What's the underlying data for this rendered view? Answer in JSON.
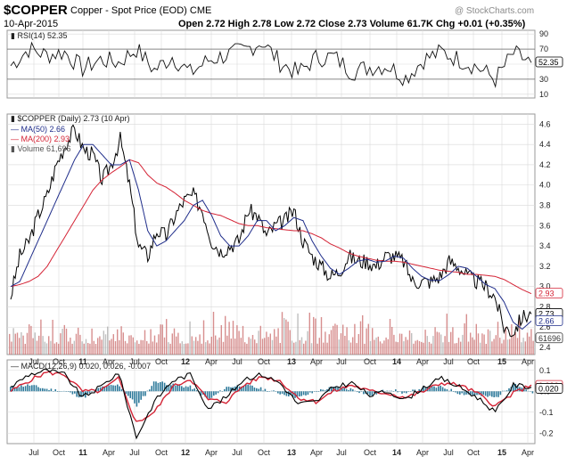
{
  "header": {
    "symbol": "$COPPER",
    "description": "Copper - Spot Price (EOD) CME",
    "date": "10-Apr-2015",
    "quote": "Open 2.72  High 2.78  Low 2.72  Close 2.73  Volume 61.7K  Chg +0.01 (+0.35%)",
    "watermark": "@ StockCharts.com"
  },
  "colors": {
    "price": "#000000",
    "ma50": "#1f2d8a",
    "ma200": "#d42335",
    "volume": "#c96a6a",
    "volume_alt": "#a9a9a9",
    "macd_line": "#000000",
    "macd_signal": "#d42335",
    "macd_hist": "#2e7a9b",
    "grid": "#d9d9d9"
  },
  "chart_data": [
    {
      "type": "line",
      "title": "RSI(14) 52.35",
      "legend": [
        "RSI(14) 52.35"
      ],
      "x_ticks": [
        "Jul",
        "Oct",
        "11",
        "Apr",
        "Jul",
        "Oct",
        "12",
        "Apr",
        "Jul",
        "Oct",
        "13",
        "Apr",
        "Jul",
        "Oct",
        "14",
        "Apr",
        "Jul",
        "Oct",
        "15",
        "Apr"
      ],
      "y_ticks": [
        10,
        30,
        50,
        70,
        90
      ],
      "ylim": [
        5,
        95
      ],
      "ref_lines": [
        30,
        70
      ],
      "last_value_label": "52.35",
      "x": [
        "Jul-10",
        "Sep-10",
        "Nov-10",
        "Jan-11",
        "Mar-11",
        "May-11",
        "Jul-11",
        "Sep-11",
        "Nov-11",
        "Jan-12",
        "Mar-12",
        "May-12",
        "Jul-12",
        "Sep-12",
        "Nov-12",
        "Jan-13",
        "Mar-13",
        "May-13",
        "Jul-13",
        "Sep-13",
        "Nov-13",
        "Jan-14",
        "Mar-14",
        "May-14",
        "Jul-14",
        "Sep-14",
        "Nov-14",
        "Jan-15",
        "Mar-15",
        "Apr-15"
      ],
      "series": [
        {
          "name": "RSI(14)",
          "values": [
            48,
            70,
            62,
            66,
            44,
            56,
            52,
            70,
            42,
            60,
            38,
            55,
            62,
            68,
            80,
            52,
            38,
            58,
            60,
            40,
            46,
            48,
            32,
            56,
            66,
            56,
            46,
            30,
            64,
            52
          ]
        }
      ],
      "grid": true
    },
    {
      "type": "line",
      "title": "$COPPER (Daily) 2.73 (10 Apr)",
      "legend": [
        "$COPPER (Daily) 2.73 (10 Apr)",
        "MA(50) 2.66",
        "MA(200) 2.93",
        "Volume 61,696"
      ],
      "x_ticks": [
        "Jul",
        "Oct",
        "11",
        "Apr",
        "Jul",
        "Oct",
        "12",
        "Apr",
        "Jul",
        "Oct",
        "13",
        "Apr",
        "Jul",
        "Oct",
        "14",
        "Apr",
        "Jul",
        "Oct",
        "15",
        "Apr"
      ],
      "y_ticks": [
        2.4,
        2.6,
        2.8,
        3.0,
        3.2,
        3.4,
        3.6,
        3.8,
        4.0,
        4.2,
        4.4,
        4.6
      ],
      "ylim": [
        2.33,
        4.7
      ],
      "value_labels": [
        "2.93",
        "2.73",
        "2.66",
        "61696"
      ],
      "x": [
        "Jul-10",
        "Aug-10",
        "Sep-10",
        "Oct-10",
        "Nov-10",
        "Dec-10",
        "Jan-11",
        "Feb-11",
        "Mar-11",
        "Apr-11",
        "May-11",
        "Jun-11",
        "Jul-11",
        "Aug-11",
        "Sep-11",
        "Oct-11",
        "Nov-11",
        "Dec-11",
        "Jan-12",
        "Feb-12",
        "Mar-12",
        "Apr-12",
        "May-12",
        "Jun-12",
        "Jul-12",
        "Aug-12",
        "Sep-12",
        "Oct-12",
        "Nov-12",
        "Dec-12",
        "Jan-13",
        "Feb-13",
        "Mar-13",
        "Apr-13",
        "May-13",
        "Jun-13",
        "Jul-13",
        "Aug-13",
        "Sep-13",
        "Oct-13",
        "Nov-13",
        "Dec-13",
        "Jan-14",
        "Feb-14",
        "Mar-14",
        "Apr-14",
        "May-14",
        "Jun-14",
        "Jul-14",
        "Aug-14",
        "Sep-14",
        "Oct-14",
        "Nov-14",
        "Dec-14",
        "Jan-15",
        "Feb-15",
        "Mar-15",
        "Apr-15"
      ],
      "series": [
        {
          "name": "$COPPER",
          "values": [
            2.9,
            3.3,
            3.45,
            3.7,
            3.9,
            4.2,
            4.4,
            4.55,
            4.35,
            4.3,
            4.05,
            4.2,
            4.45,
            4.0,
            3.4,
            3.3,
            3.55,
            3.5,
            3.7,
            3.85,
            3.9,
            3.75,
            3.45,
            3.35,
            3.4,
            3.45,
            3.75,
            3.7,
            3.5,
            3.6,
            3.65,
            3.75,
            3.45,
            3.3,
            3.2,
            3.1,
            3.15,
            3.3,
            3.25,
            3.25,
            3.2,
            3.3,
            3.3,
            3.25,
            3.05,
            3.05,
            3.05,
            3.1,
            3.25,
            3.2,
            3.1,
            3.05,
            3.0,
            2.9,
            2.6,
            2.55,
            2.7,
            2.73
          ]
        },
        {
          "name": "MA(50)",
          "values": [
            3.0,
            3.05,
            3.25,
            3.45,
            3.65,
            3.85,
            4.05,
            4.25,
            4.4,
            4.4,
            4.3,
            4.2,
            4.2,
            4.25,
            3.95,
            3.55,
            3.4,
            3.45,
            3.55,
            3.65,
            3.8,
            3.85,
            3.7,
            3.5,
            3.4,
            3.4,
            3.5,
            3.65,
            3.65,
            3.55,
            3.6,
            3.68,
            3.65,
            3.45,
            3.3,
            3.18,
            3.12,
            3.18,
            3.25,
            3.27,
            3.24,
            3.25,
            3.3,
            3.28,
            3.18,
            3.1,
            3.06,
            3.06,
            3.12,
            3.2,
            3.18,
            3.1,
            3.02,
            2.98,
            2.85,
            2.65,
            2.58,
            2.66
          ]
        },
        {
          "name": "MA(200)",
          "values": [
            3.0,
            3.02,
            3.05,
            3.1,
            3.2,
            3.35,
            3.5,
            3.65,
            3.8,
            3.95,
            4.05,
            4.12,
            4.18,
            4.25,
            4.22,
            4.1,
            4.02,
            3.98,
            3.92,
            3.85,
            3.8,
            3.75,
            3.72,
            3.7,
            3.66,
            3.62,
            3.6,
            3.6,
            3.58,
            3.57,
            3.56,
            3.55,
            3.55,
            3.52,
            3.48,
            3.42,
            3.38,
            3.33,
            3.3,
            3.28,
            3.26,
            3.25,
            3.25,
            3.24,
            3.22,
            3.2,
            3.18,
            3.16,
            3.15,
            3.14,
            3.12,
            3.12,
            3.11,
            3.1,
            3.07,
            3.02,
            2.97,
            2.93
          ]
        }
      ],
      "grid": true
    },
    {
      "type": "line",
      "title": "MACD(12,26,9) 0.020, 0.026, -0.007",
      "legend": [
        "MACD(12,26,9) 0.020, 0.026, -0.007"
      ],
      "x_ticks": [
        "Jul",
        "Oct",
        "11",
        "Apr",
        "Jul",
        "Oct",
        "12",
        "Apr",
        "Jul",
        "Oct",
        "13",
        "Apr",
        "Jul",
        "Oct",
        "14",
        "Apr",
        "Jul",
        "Oct",
        "15",
        "Apr"
      ],
      "y_ticks": [
        -0.2,
        -0.1,
        0.0,
        0.1
      ],
      "ylim": [
        -0.25,
        0.15
      ],
      "value_labels": [
        "0.020",
        "0.026"
      ],
      "x": [
        "Jul-10",
        "Sep-10",
        "Nov-10",
        "Jan-11",
        "Mar-11",
        "May-11",
        "Jul-11",
        "Sep-11",
        "Nov-11",
        "Jan-12",
        "Mar-12",
        "May-12",
        "Jul-12",
        "Sep-12",
        "Nov-12",
        "Jan-13",
        "Mar-13",
        "May-13",
        "Jul-13",
        "Sep-13",
        "Nov-13",
        "Jan-14",
        "Mar-14",
        "May-14",
        "Jul-14",
        "Sep-14",
        "Nov-14",
        "Jan-15",
        "Mar-15",
        "Apr-15"
      ],
      "series": [
        {
          "name": "MACD",
          "values": [
            0.02,
            0.08,
            0.1,
            0.08,
            -0.03,
            0.02,
            0.09,
            -0.22,
            -0.05,
            0.05,
            0.08,
            -0.08,
            -0.03,
            0.06,
            0.08,
            0.04,
            -0.06,
            -0.05,
            0.02,
            0.04,
            -0.02,
            0.0,
            -0.04,
            0.02,
            0.06,
            0.02,
            -0.03,
            -0.1,
            0.03,
            0.02
          ]
        },
        {
          "name": "Signal",
          "values": [
            0.0,
            0.05,
            0.09,
            0.08,
            0.0,
            0.0,
            0.06,
            -0.15,
            -0.1,
            0.02,
            0.06,
            -0.04,
            -0.05,
            0.03,
            0.07,
            0.05,
            -0.03,
            -0.05,
            0.0,
            0.03,
            0.0,
            -0.01,
            -0.03,
            0.0,
            0.04,
            0.03,
            -0.01,
            -0.07,
            -0.01,
            0.03
          ]
        },
        {
          "name": "Histogram",
          "values": [
            0.02,
            0.03,
            0.01,
            0.0,
            -0.03,
            0.02,
            0.03,
            -0.07,
            0.05,
            0.03,
            0.02,
            -0.04,
            0.02,
            0.03,
            0.01,
            -0.01,
            -0.03,
            0.0,
            0.02,
            0.01,
            -0.02,
            0.01,
            -0.01,
            0.02,
            0.02,
            -0.01,
            -0.02,
            -0.03,
            0.04,
            -0.01
          ]
        }
      ],
      "grid": true
    }
  ]
}
